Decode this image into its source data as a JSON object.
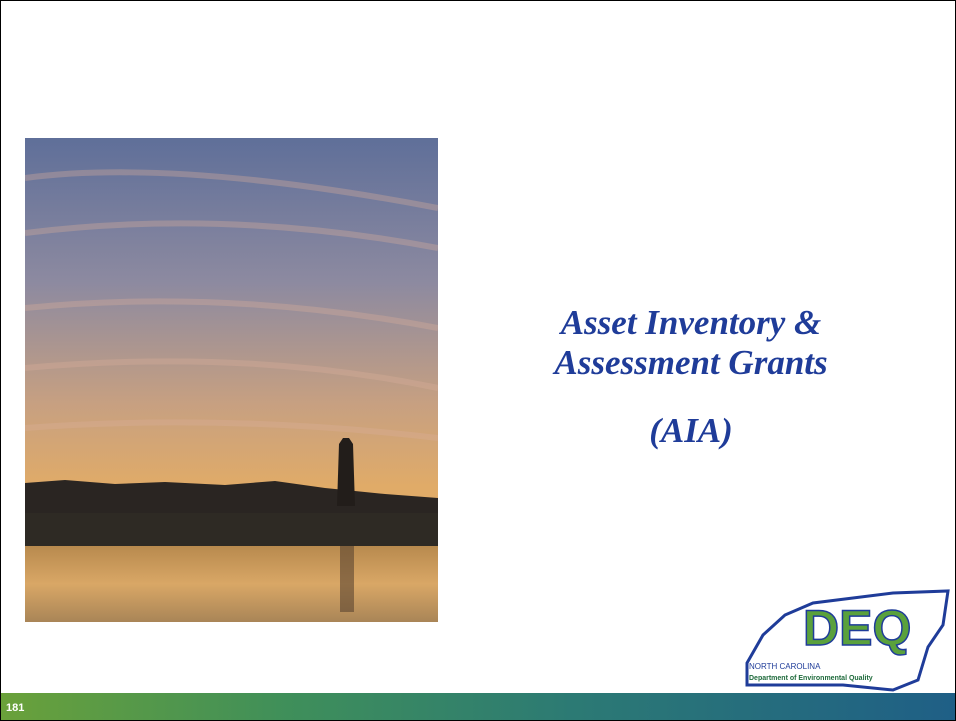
{
  "slide": {
    "title_lines": [
      "Asset Inventory &",
      "Assessment Grants",
      "(AIA)"
    ],
    "page_number": "181",
    "logo": {
      "mark": "DEQ",
      "state": "NORTH CAROLINA",
      "department": "Department of Environmental Quality"
    }
  }
}
